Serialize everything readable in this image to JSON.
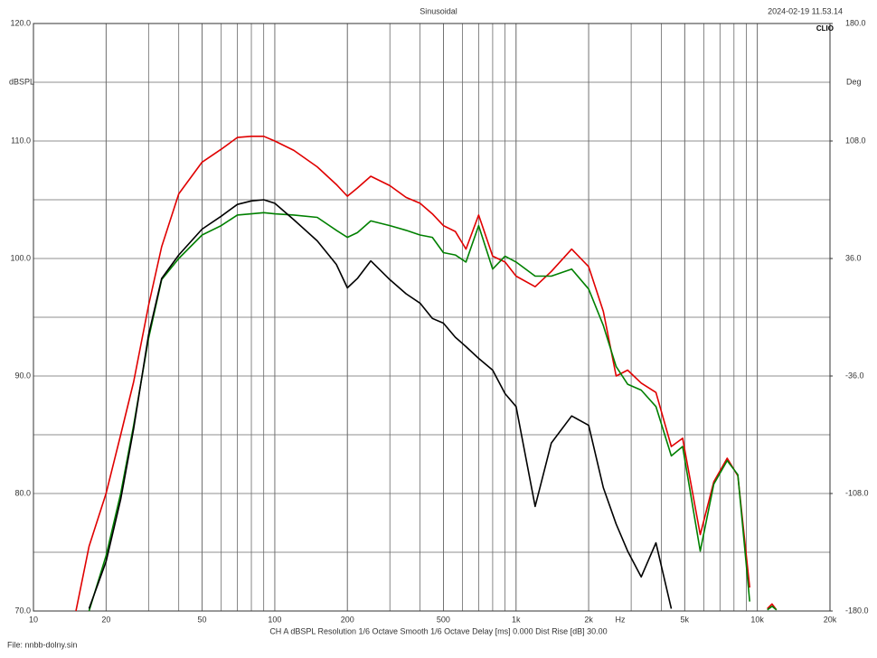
{
  "chart_data": {
    "type": "line",
    "title": "Sinusoidal",
    "timestamp": "2024-02-19 11.53.14",
    "brand": "CLIO",
    "ylabel": "dBSPL",
    "y2label": "Deg",
    "xlabel": "Hz",
    "footer": "CH A   dBSPL   Resolution 1/6 Octave   Smooth 1/6 Octave   Delay [ms] 0.000   Dist Rise [dB] 30.00",
    "file": "File: nnbb-dolny.sin",
    "xscale": "log",
    "xlim": [
      10,
      20000
    ],
    "xticks": [
      10,
      20,
      50,
      100,
      200,
      500,
      {
        "value": 1000,
        "label": "1k"
      },
      {
        "value": 2000,
        "label": "2k"
      },
      {
        "value": 5000,
        "label": "5k"
      },
      {
        "value": 10000,
        "label": "10k"
      },
      {
        "value": 20000,
        "label": "20k"
      }
    ],
    "ylim": [
      70,
      120
    ],
    "yticks": [
      {
        "value": 70,
        "label": "70.0"
      },
      {
        "value": 80,
        "label": "80.0"
      },
      {
        "value": 90,
        "label": "90.0"
      },
      {
        "value": 100,
        "label": "100.0"
      },
      {
        "value": 110,
        "label": "110.0"
      },
      {
        "value": 120,
        "label": "120.0"
      }
    ],
    "y2lim": [
      -180,
      180
    ],
    "y2ticks": [
      {
        "value": -180,
        "label": "-180.0"
      },
      {
        "value": -108,
        "label": "-108.0"
      },
      {
        "value": -36,
        "label": "-36.0"
      },
      {
        "value": 36,
        "label": "36.0"
      },
      {
        "value": 108,
        "label": "108.0"
      },
      {
        "value": 180,
        "label": "180.0"
      }
    ],
    "grid": true,
    "x": [
      15,
      17,
      20,
      23,
      26,
      30,
      34,
      40,
      50,
      60,
      70,
      80,
      90,
      100,
      120,
      150,
      180,
      200,
      220,
      250,
      300,
      350,
      400,
      450,
      500,
      560,
      620,
      700,
      800,
      900,
      1000,
      1200,
      1400,
      1700,
      2000,
      2300,
      2600,
      2900,
      3300,
      3800,
      4400,
      4900,
      5800,
      6600,
      7500,
      8300,
      9300,
      10000,
      11000,
      11500,
      12000
    ],
    "series": [
      {
        "color": "#e00000",
        "values": [
          70,
          75.5,
          80,
          85,
          89.5,
          96,
          101,
          105.5,
          108.2,
          109.3,
          110.3,
          110.4,
          110.4,
          110,
          109.2,
          107.8,
          106.3,
          105.3,
          106,
          107,
          106.2,
          105.2,
          104.7,
          103.8,
          102.8,
          102.3,
          100.8,
          103.7,
          100.2,
          99.7,
          98.5,
          97.6,
          98.9,
          100.8,
          99.3,
          95.5,
          90,
          90.5,
          89.4,
          88.6,
          84,
          84.7,
          76.5,
          81,
          83,
          81.5,
          72,
          null,
          70.2,
          70.6,
          70.1
        ]
      },
      {
        "color": "#008000",
        "values": [
          null,
          70,
          74.7,
          80,
          85.8,
          93.2,
          98.2,
          100,
          102,
          102.8,
          103.7,
          103.8,
          103.9,
          103.8,
          103.7,
          103.5,
          102.4,
          101.8,
          102.2,
          103.2,
          102.8,
          102.4,
          102,
          101.8,
          100.5,
          100.3,
          99.7,
          102.8,
          99.1,
          100.2,
          99.7,
          98.5,
          98.5,
          99.1,
          97.4,
          94.3,
          90.8,
          89.3,
          88.8,
          87.4,
          83.2,
          84,
          75.1,
          80.8,
          82.8,
          81.6,
          70.8,
          null,
          70.1,
          70.4,
          70.1
        ]
      },
      {
        "color": "#000000",
        "values": [
          null,
          70.2,
          74.2,
          79.5,
          85.5,
          93.5,
          98.3,
          100.3,
          102.5,
          103.6,
          104.6,
          104.9,
          105,
          104.7,
          103.3,
          101.5,
          99.5,
          97.5,
          98.3,
          99.8,
          98.2,
          97,
          96.2,
          94.9,
          94.5,
          93.3,
          92.5,
          91.5,
          90.5,
          88.5,
          87.4,
          78.9,
          84.3,
          86.6,
          85.8,
          80.5,
          77.4,
          75.1,
          72.9,
          75.8,
          70.2,
          null,
          null,
          null,
          null,
          null,
          null,
          null,
          null,
          null,
          null
        ]
      }
    ]
  }
}
